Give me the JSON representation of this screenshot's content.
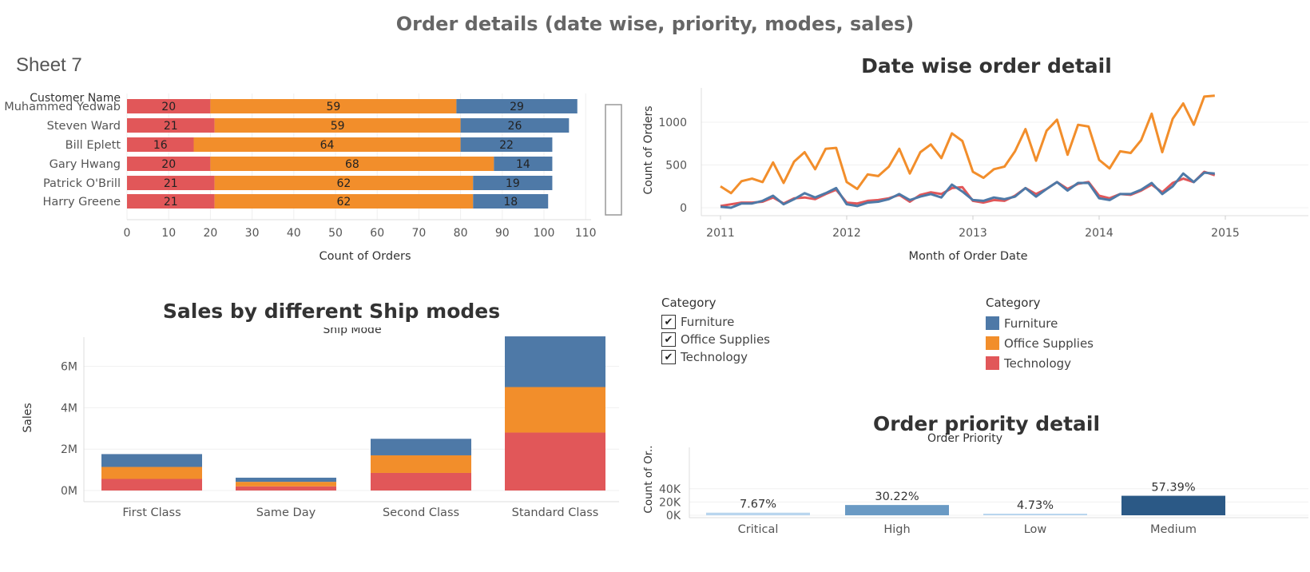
{
  "dashboard": {
    "title": "Order details (date wise, priority, modes, sales)",
    "sheet7_title": "Sheet 7"
  },
  "colors": {
    "furniture": "#4e79a7",
    "office_supplies": "#f28e2b",
    "technology": "#e15759",
    "priority_critical": "#b9d6ee",
    "priority_high": "#6a9ac4",
    "priority_low": "#b9d6ee",
    "priority_medium": "#2b5986"
  },
  "filter_legend": {
    "title": "Category",
    "items": [
      "Furniture",
      "Office Supplies",
      "Technology"
    ],
    "check_glyph": "✔"
  },
  "color_legend": {
    "title": "Category",
    "items": [
      {
        "label": "Furniture",
        "color": "#4e79a7"
      },
      {
        "label": "Office Supplies",
        "color": "#f28e2b"
      },
      {
        "label": "Technology",
        "color": "#e15759"
      }
    ]
  },
  "chart_data": [
    {
      "id": "customers",
      "type": "bar",
      "orientation": "horizontal",
      "stacked": true,
      "title": "",
      "row_header": "Customer Name",
      "xlabel": "Count of Orders",
      "categories": [
        "Muhammed Yedwab",
        "Steven Ward",
        "Bill Eplett",
        "Gary Hwang",
        "Patrick O'Brill",
        "Harry Greene"
      ],
      "series": [
        {
          "name": "Technology",
          "values": [
            20,
            21,
            16,
            20,
            21,
            21
          ]
        },
        {
          "name": "Office Supplies",
          "values": [
            59,
            59,
            64,
            68,
            62,
            62
          ]
        },
        {
          "name": "Furniture",
          "values": [
            29,
            26,
            22,
            14,
            19,
            18
          ]
        }
      ],
      "xlim": [
        0,
        113
      ],
      "xticks": [
        0,
        10,
        20,
        30,
        40,
        50,
        60,
        70,
        80,
        90,
        100,
        110
      ]
    },
    {
      "id": "datewise",
      "type": "line",
      "title": "Date wise order detail",
      "xlabel": "Month of Order Date",
      "ylabel": "Count of Orders",
      "x_start": 2011.0,
      "x_step": 0.08333,
      "xticks": [
        2011,
        2012,
        2013,
        2014,
        2015
      ],
      "yticks": [
        0,
        500,
        1000
      ],
      "ylim": [
        -60,
        1420
      ],
      "series": [
        {
          "name": "Office Supplies",
          "values": [
            250,
            170,
            310,
            340,
            300,
            530,
            290,
            540,
            650,
            450,
            690,
            700,
            300,
            220,
            390,
            370,
            480,
            690,
            400,
            650,
            740,
            580,
            870,
            780,
            420,
            350,
            450,
            480,
            660,
            920,
            550,
            900,
            1030,
            620,
            970,
            950,
            560,
            460,
            660,
            640,
            790,
            1100,
            650,
            1040,
            1220,
            970,
            1300,
            1310
          ]
        },
        {
          "name": "Technology",
          "values": [
            20,
            40,
            60,
            60,
            70,
            120,
            50,
            110,
            120,
            100,
            160,
            210,
            60,
            50,
            80,
            90,
            110,
            150,
            70,
            150,
            180,
            160,
            230,
            240,
            80,
            60,
            90,
            80,
            140,
            230,
            160,
            220,
            300,
            220,
            280,
            300,
            140,
            110,
            160,
            150,
            200,
            270,
            180,
            290,
            340,
            300,
            420,
            380
          ]
        },
        {
          "name": "Furniture",
          "values": [
            10,
            0,
            50,
            50,
            80,
            140,
            40,
            100,
            170,
            120,
            170,
            230,
            40,
            20,
            60,
            70,
            100,
            160,
            90,
            130,
            160,
            120,
            270,
            190,
            90,
            80,
            120,
            100,
            130,
            230,
            130,
            220,
            300,
            200,
            290,
            290,
            110,
            90,
            160,
            160,
            210,
            290,
            160,
            250,
            400,
            300,
            410,
            400
          ]
        }
      ]
    },
    {
      "id": "shipmode",
      "type": "bar",
      "stacked": true,
      "title": "Sales by different Ship modes",
      "header": "Ship Mode",
      "ylabel": "Sales",
      "categories": [
        "First Class",
        "Same Day",
        "Second Class",
        "Standard Class"
      ],
      "series": [
        {
          "name": "Technology",
          "values": [
            560000,
            200000,
            850000,
            2800000
          ]
        },
        {
          "name": "Office Supplies",
          "values": [
            580000,
            220000,
            850000,
            2200000
          ]
        },
        {
          "name": "Furniture",
          "values": [
            620000,
            200000,
            800000,
            2450000
          ]
        }
      ],
      "yticks": [
        0,
        2000000,
        4000000,
        6000000
      ],
      "ytick_labels": [
        "0M",
        "2M",
        "4M",
        "6M"
      ],
      "ylim": [
        -300000,
        7800000
      ]
    },
    {
      "id": "priority",
      "type": "bar",
      "title": "Order priority detail",
      "header": "Order Priority",
      "ylabel": "Count of Or..",
      "categories": [
        "Critical",
        "High",
        "Low",
        "Medium"
      ],
      "values": [
        3932,
        15501,
        2424,
        29433
      ],
      "data_labels": [
        "7.67%",
        "30.22%",
        "4.73%",
        "57.39%"
      ],
      "yticks": [
        0,
        20000,
        40000
      ],
      "ytick_labels": [
        "0K",
        "20K",
        "40K"
      ],
      "ylim": [
        -5000,
        42000
      ]
    }
  ]
}
